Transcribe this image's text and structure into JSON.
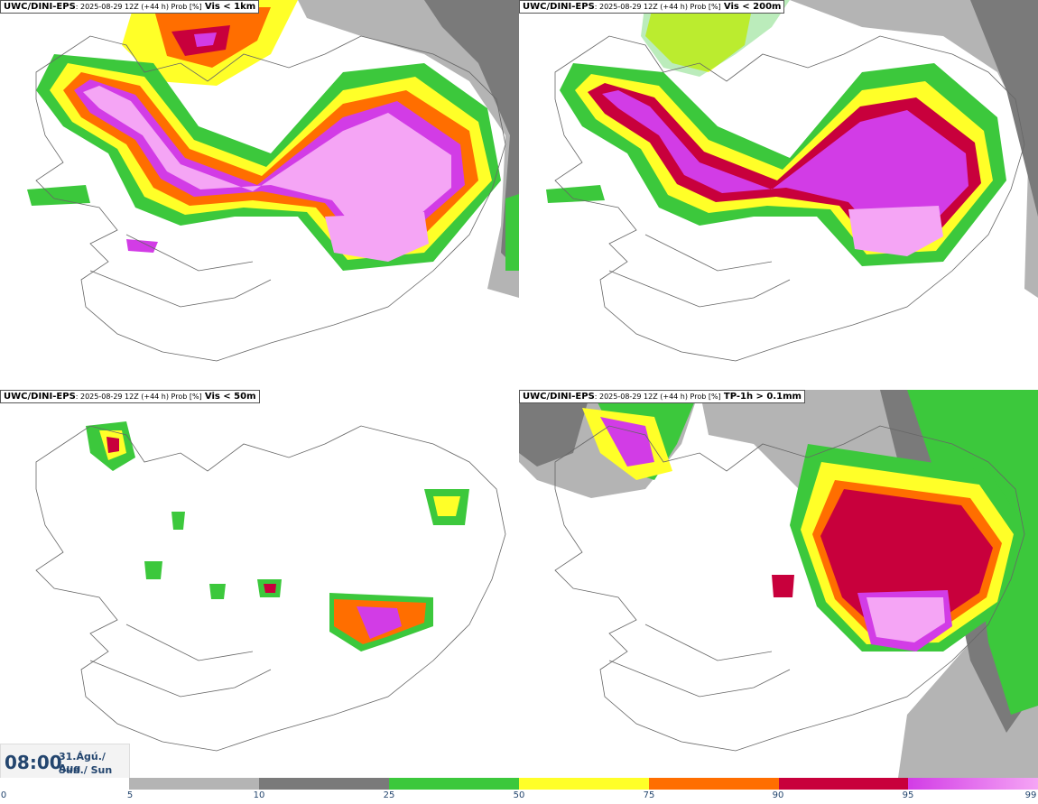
{
  "panels": [
    {
      "source": "UWC/DINI-EPS",
      "meta": ": 2025-08-29 12Z (+44 h) Prob [%]",
      "variable": "Vis < 1km"
    },
    {
      "source": "UWC/DINI-EPS",
      "meta": ": 2025-08-29 12Z (+44 h) Prob [%]",
      "variable": "Vis < 200m"
    },
    {
      "source": "UWC/DINI-EPS",
      "meta": ": 2025-08-29 12Z (+44 h) Prob [%]",
      "variable": "Vis < 50m"
    },
    {
      "source": "UWC/DINI-EPS",
      "meta": ": 2025-08-29 12Z (+44 h) Prob [%]",
      "variable": "TP-1h > 0.1mm"
    }
  ],
  "valid_time": {
    "time": "08:00",
    "date_line1": "31.Ágú./ Aug",
    "date_line2": "Sun./ Sun"
  },
  "colorbar": {
    "ticks": [
      "0",
      "5",
      "10",
      "25",
      "50",
      "75",
      "90",
      "95",
      "99"
    ],
    "colors": [
      "#ffffff",
      "#b4b4b4",
      "#7a7a7a",
      "#3cc83c",
      "#ffff28",
      "#ff6e00",
      "#c8003c",
      "#d23ce6",
      "#f5a5f5"
    ]
  }
}
